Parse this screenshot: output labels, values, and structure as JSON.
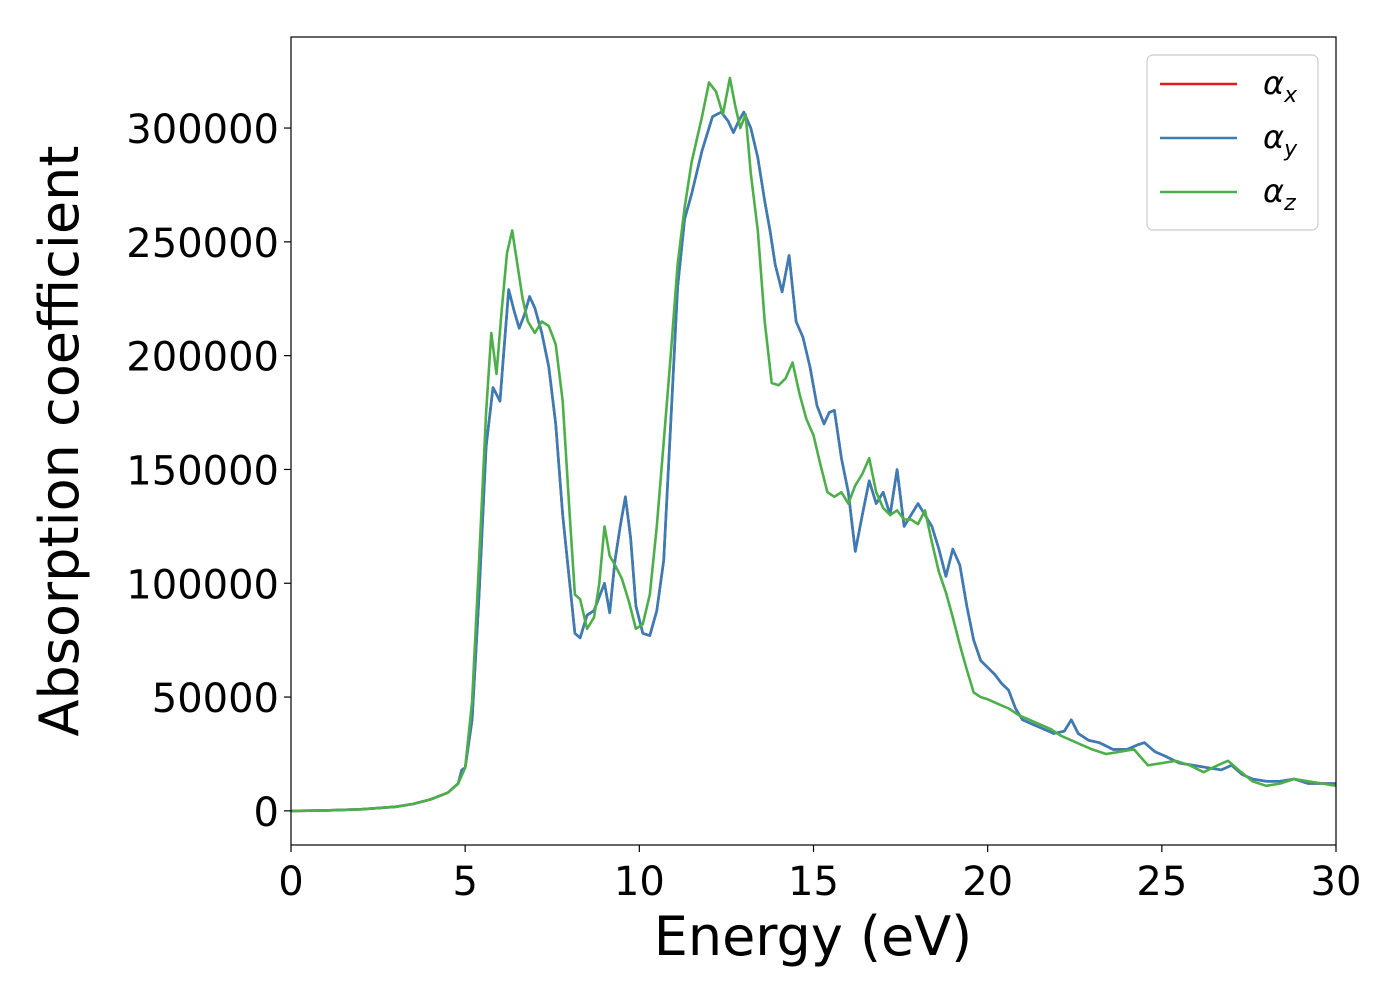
{
  "chart_data": {
    "type": "line",
    "title": "",
    "xlabel": "Energy (eV)",
    "ylabel": "Absorption coefficient",
    "xlim": [
      0,
      30
    ],
    "ylim": [
      -15000,
      340000
    ],
    "xticks": [
      0,
      5,
      10,
      15,
      20,
      25,
      30
    ],
    "yticks": [
      0,
      50000,
      100000,
      150000,
      200000,
      250000,
      300000
    ],
    "grid": false,
    "legend_position": "top-right",
    "series": [
      {
        "name": "αx",
        "name_base": "α",
        "name_sub": "x",
        "color": "#e41a1c",
        "x": [
          0,
          1,
          2,
          3,
          3.5,
          4,
          4.5,
          4.8,
          4.9,
          5.0,
          5.2,
          5.4,
          5.6,
          5.8,
          5.9,
          6.0,
          6.1,
          6.25,
          6.4,
          6.55,
          6.7,
          6.85,
          7.0,
          7.2,
          7.4,
          7.6,
          7.8,
          8.0,
          8.15,
          8.3,
          8.5,
          8.7,
          8.9,
          9.0,
          9.15,
          9.3,
          9.45,
          9.6,
          9.75,
          9.9,
          10.1,
          10.3,
          10.5,
          10.7,
          10.9,
          11.1,
          11.3,
          11.5,
          11.8,
          12.1,
          12.35,
          12.55,
          12.7,
          12.85,
          13.0,
          13.2,
          13.4,
          13.6,
          13.75,
          13.9,
          14.1,
          14.3,
          14.5,
          14.7,
          14.9,
          15.1,
          15.3,
          15.45,
          15.6,
          15.8,
          16.0,
          16.2,
          16.4,
          16.6,
          16.8,
          17.0,
          17.2,
          17.4,
          17.6,
          17.8,
          18.0,
          18.2,
          18.4,
          18.6,
          18.8,
          19.0,
          19.2,
          19.4,
          19.6,
          19.8,
          20.0,
          20.2,
          20.4,
          20.6,
          20.8,
          21.0,
          21.3,
          21.6,
          21.9,
          22.2,
          22.4,
          22.6,
          22.9,
          23.2,
          23.6,
          24.0,
          24.3,
          24.5,
          24.8,
          25.1,
          25.5,
          25.9,
          26.3,
          26.7,
          27.0,
          27.3,
          27.6,
          28.0,
          28.4,
          28.8,
          29.2,
          29.6,
          30
        ],
        "y": [
          0,
          200,
          700,
          1800,
          3000,
          5000,
          8000,
          12000,
          18000,
          19000,
          40000,
          95000,
          160000,
          186000,
          183000,
          180000,
          200000,
          229000,
          220000,
          212000,
          218000,
          226000,
          221000,
          210000,
          195000,
          170000,
          130000,
          100000,
          78000,
          76000,
          86000,
          88000,
          96000,
          100000,
          87000,
          110000,
          125000,
          138000,
          120000,
          90000,
          78000,
          77000,
          88000,
          110000,
          170000,
          230000,
          260000,
          271000,
          290000,
          305000,
          307000,
          303000,
          298000,
          303000,
          307000,
          300000,
          287000,
          268000,
          255000,
          240000,
          228000,
          244000,
          215000,
          208000,
          195000,
          178000,
          170000,
          175000,
          176000,
          155000,
          140000,
          114000,
          130000,
          145000,
          135000,
          140000,
          130000,
          150000,
          125000,
          130000,
          135000,
          130000,
          125000,
          115000,
          103000,
          115000,
          108000,
          90000,
          75000,
          66000,
          63000,
          60000,
          56000,
          53000,
          45000,
          40000,
          38000,
          36000,
          34000,
          35000,
          40000,
          34000,
          31000,
          30000,
          27000,
          27000,
          29000,
          30000,
          26000,
          24000,
          21000,
          20000,
          19000,
          18000,
          20000,
          16000,
          14000,
          13000,
          13000,
          14000,
          12000,
          12000,
          12000
        ]
      },
      {
        "name": "αy",
        "name_base": "α",
        "name_sub": "y",
        "color": "#377eb8",
        "x": [
          0,
          1,
          2,
          3,
          3.5,
          4,
          4.5,
          4.8,
          4.9,
          5.0,
          5.2,
          5.4,
          5.6,
          5.8,
          5.9,
          6.0,
          6.1,
          6.25,
          6.4,
          6.55,
          6.7,
          6.85,
          7.0,
          7.2,
          7.4,
          7.6,
          7.8,
          8.0,
          8.15,
          8.3,
          8.5,
          8.7,
          8.9,
          9.0,
          9.15,
          9.3,
          9.45,
          9.6,
          9.75,
          9.9,
          10.1,
          10.3,
          10.5,
          10.7,
          10.9,
          11.1,
          11.3,
          11.5,
          11.8,
          12.1,
          12.35,
          12.55,
          12.7,
          12.85,
          13.0,
          13.2,
          13.4,
          13.6,
          13.75,
          13.9,
          14.1,
          14.3,
          14.5,
          14.7,
          14.9,
          15.1,
          15.3,
          15.45,
          15.6,
          15.8,
          16.0,
          16.2,
          16.4,
          16.6,
          16.8,
          17.0,
          17.2,
          17.4,
          17.6,
          17.8,
          18.0,
          18.2,
          18.4,
          18.6,
          18.8,
          19.0,
          19.2,
          19.4,
          19.6,
          19.8,
          20.0,
          20.2,
          20.4,
          20.6,
          20.8,
          21.0,
          21.3,
          21.6,
          21.9,
          22.2,
          22.4,
          22.6,
          22.9,
          23.2,
          23.6,
          24.0,
          24.3,
          24.5,
          24.8,
          25.1,
          25.5,
          25.9,
          26.3,
          26.7,
          27.0,
          27.3,
          27.6,
          28.0,
          28.4,
          28.8,
          29.2,
          29.6,
          30
        ],
        "y": [
          0,
          200,
          700,
          1800,
          3000,
          5000,
          8000,
          12000,
          18000,
          19000,
          40000,
          95000,
          160000,
          186000,
          183000,
          180000,
          200000,
          229000,
          220000,
          212000,
          218000,
          226000,
          221000,
          210000,
          195000,
          170000,
          130000,
          100000,
          78000,
          76000,
          86000,
          88000,
          96000,
          100000,
          87000,
          110000,
          125000,
          138000,
          120000,
          90000,
          78000,
          77000,
          88000,
          110000,
          170000,
          230000,
          260000,
          271000,
          290000,
          305000,
          307000,
          303000,
          298000,
          303000,
          307000,
          300000,
          287000,
          268000,
          255000,
          240000,
          228000,
          244000,
          215000,
          208000,
          195000,
          178000,
          170000,
          175000,
          176000,
          155000,
          140000,
          114000,
          130000,
          145000,
          135000,
          140000,
          130000,
          150000,
          125000,
          130000,
          135000,
          130000,
          125000,
          115000,
          103000,
          115000,
          108000,
          90000,
          75000,
          66000,
          63000,
          60000,
          56000,
          53000,
          45000,
          40000,
          38000,
          36000,
          34000,
          35000,
          40000,
          34000,
          31000,
          30000,
          27000,
          27000,
          29000,
          30000,
          26000,
          24000,
          21000,
          20000,
          19000,
          18000,
          20000,
          16000,
          14000,
          13000,
          13000,
          14000,
          12000,
          12000,
          12000
        ]
      },
      {
        "name": "αz",
        "name_base": "α",
        "name_sub": "z",
        "color": "#4daf4a",
        "x": [
          0,
          1,
          2,
          3,
          3.5,
          4,
          4.5,
          4.8,
          5.0,
          5.2,
          5.4,
          5.6,
          5.75,
          5.9,
          6.05,
          6.2,
          6.35,
          6.5,
          6.65,
          6.8,
          7.0,
          7.2,
          7.4,
          7.6,
          7.8,
          8.0,
          8.15,
          8.3,
          8.5,
          8.7,
          8.85,
          9.0,
          9.15,
          9.3,
          9.5,
          9.7,
          9.9,
          10.1,
          10.3,
          10.5,
          10.7,
          10.9,
          11.1,
          11.3,
          11.5,
          11.8,
          12.0,
          12.2,
          12.4,
          12.6,
          12.75,
          12.9,
          13.05,
          13.2,
          13.4,
          13.6,
          13.8,
          14.0,
          14.2,
          14.4,
          14.6,
          14.8,
          15.0,
          15.2,
          15.4,
          15.6,
          15.8,
          16.0,
          16.2,
          16.4,
          16.6,
          16.8,
          17.0,
          17.2,
          17.4,
          17.6,
          17.8,
          18.0,
          18.2,
          18.4,
          18.6,
          18.8,
          19.0,
          19.2,
          19.4,
          19.6,
          19.8,
          20.0,
          20.3,
          20.6,
          20.9,
          21.2,
          21.5,
          21.8,
          22.1,
          22.4,
          22.7,
          23.0,
          23.4,
          23.8,
          24.2,
          24.6,
          25.0,
          25.4,
          25.8,
          26.2,
          26.6,
          26.9,
          27.2,
          27.6,
          28.0,
          28.4,
          28.8,
          29.2,
          29.6,
          30
        ],
        "y": [
          0,
          200,
          700,
          1800,
          3000,
          5000,
          8000,
          12000,
          19000,
          48000,
          110000,
          175000,
          210000,
          192000,
          220000,
          245000,
          255000,
          240000,
          225000,
          215000,
          210000,
          215000,
          213000,
          205000,
          180000,
          130000,
          95000,
          93000,
          80000,
          85000,
          100000,
          125000,
          112000,
          108000,
          102000,
          92000,
          80000,
          82000,
          95000,
          125000,
          162000,
          200000,
          240000,
          265000,
          285000,
          305000,
          320000,
          316000,
          306000,
          322000,
          310000,
          300000,
          306000,
          280000,
          255000,
          215000,
          188000,
          187000,
          190000,
          197000,
          183000,
          172000,
          165000,
          152000,
          140000,
          138000,
          140000,
          135000,
          143000,
          148000,
          155000,
          140000,
          133000,
          130000,
          132000,
          128000,
          128000,
          126000,
          132000,
          118000,
          105000,
          96000,
          85000,
          73000,
          62000,
          52000,
          50000,
          49000,
          47000,
          45000,
          42000,
          40000,
          38000,
          36000,
          33000,
          31000,
          29000,
          27000,
          25000,
          26000,
          27000,
          20000,
          21000,
          22000,
          20000,
          17000,
          20000,
          22000,
          18000,
          13000,
          11000,
          12000,
          14000,
          13000,
          12000,
          11000
        ]
      }
    ]
  }
}
